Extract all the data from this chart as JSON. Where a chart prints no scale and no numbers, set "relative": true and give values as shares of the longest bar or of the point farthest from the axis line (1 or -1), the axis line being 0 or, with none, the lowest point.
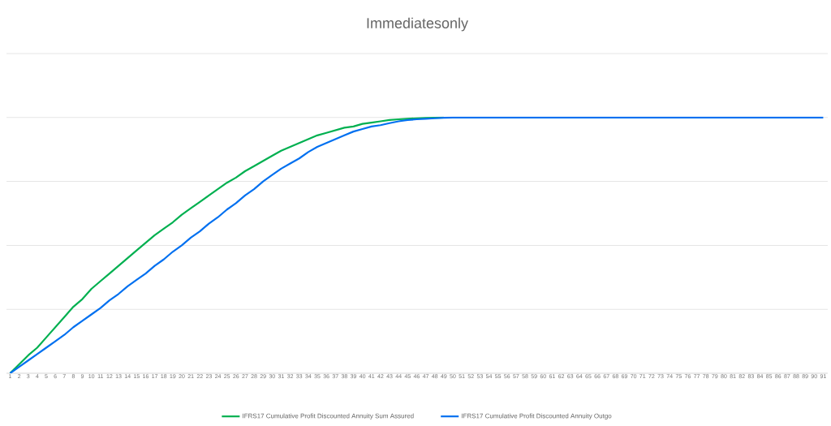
{
  "chart_data": {
    "type": "line",
    "title": "Immediatesonly",
    "relative": true,
    "grid": "y",
    "legend": "bottom",
    "marker": "none",
    "categories": [
      "1",
      "2",
      "3",
      "4",
      "5",
      "6",
      "7",
      "8",
      "9",
      "10",
      "11",
      "12",
      "13",
      "14",
      "15",
      "16",
      "17",
      "18",
      "19",
      "20",
      "21",
      "22",
      "23",
      "24",
      "25",
      "26",
      "27",
      "28",
      "29",
      "30",
      "31",
      "32",
      "33",
      "34",
      "35",
      "36",
      "37",
      "38",
      "39",
      "40",
      "41",
      "42",
      "43",
      "44",
      "45",
      "46",
      "47",
      "48",
      "49",
      "50",
      "51",
      "52",
      "53",
      "54",
      "55",
      "56",
      "57",
      "58",
      "59",
      "60",
      "61",
      "62",
      "63",
      "64",
      "65",
      "66",
      "67",
      "68",
      "69",
      "70",
      "71",
      "72",
      "73",
      "74",
      "75",
      "76",
      "77",
      "78",
      "79",
      "80",
      "81",
      "82",
      "83",
      "84",
      "85",
      "86",
      "87",
      "88",
      "89",
      "90",
      "91"
    ],
    "series": [
      {
        "name": "IFRS17 Cumulative Profit Discounted Annuity Sum Assured",
        "color": "#00b050",
        "values": [
          0,
          0.035,
          0.07,
          0.1,
          0.14,
          0.18,
          0.22,
          0.26,
          0.29,
          0.33,
          0.36,
          0.39,
          0.42,
          0.45,
          0.48,
          0.51,
          0.54,
          0.565,
          0.59,
          0.62,
          0.645,
          0.67,
          0.695,
          0.72,
          0.745,
          0.765,
          0.79,
          0.81,
          0.83,
          0.85,
          0.87,
          0.885,
          0.9,
          0.915,
          0.93,
          0.94,
          0.95,
          0.96,
          0.965,
          0.975,
          0.98,
          0.985,
          0.99,
          0.993,
          0.995,
          0.997,
          0.998,
          0.999,
          1,
          null,
          null,
          null,
          null,
          null,
          null,
          null,
          null,
          null,
          null,
          null,
          null,
          null,
          null,
          null,
          null,
          null,
          null,
          null,
          null,
          null,
          null,
          null,
          null,
          null,
          null,
          null,
          null,
          null,
          null,
          null,
          null,
          null,
          null,
          null,
          null,
          null,
          null,
          null,
          null,
          null,
          null
        ]
      },
      {
        "name": "IFRS17 Cumulative Profit Discounted Annuity Outgo",
        "color": "#0070f0",
        "values": [
          0,
          0.025,
          0.05,
          0.075,
          0.1,
          0.125,
          0.15,
          0.18,
          0.205,
          0.23,
          0.255,
          0.285,
          0.31,
          0.34,
          0.365,
          0.39,
          0.42,
          0.445,
          0.475,
          0.5,
          0.53,
          0.555,
          0.585,
          0.61,
          0.64,
          0.665,
          0.695,
          0.72,
          0.75,
          0.775,
          0.8,
          0.82,
          0.84,
          0.865,
          0.885,
          0.9,
          0.915,
          0.93,
          0.945,
          0.955,
          0.965,
          0.97,
          0.978,
          0.985,
          0.99,
          0.993,
          0.995,
          0.997,
          0.999,
          1,
          1,
          1,
          1,
          1,
          1,
          1,
          1,
          1,
          1,
          1,
          1,
          1,
          1,
          1,
          1,
          1,
          1,
          1,
          1,
          1,
          1,
          1,
          1,
          1,
          1,
          1,
          1,
          1,
          1,
          1,
          1,
          1,
          1,
          1,
          1,
          1,
          1,
          1,
          1,
          1,
          1
        ]
      }
    ]
  }
}
